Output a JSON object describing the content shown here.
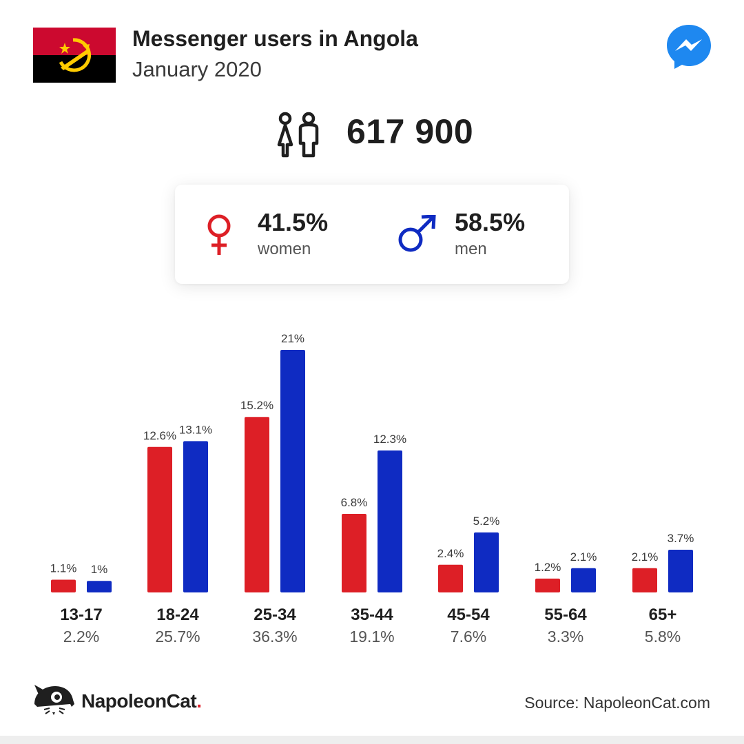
{
  "header": {
    "title": "Messenger users in Angola",
    "subtitle": "January 2020"
  },
  "icons": {
    "flag": "angola-flag",
    "platform": "messenger-icon",
    "people": "people-icon",
    "female": "female-icon",
    "male": "male-icon",
    "brand_logo": "napoleoncat-logo"
  },
  "total_users": "617 900",
  "gender": {
    "women": {
      "value": "41.5%",
      "label": "women"
    },
    "men": {
      "value": "58.5%",
      "label": "men"
    }
  },
  "colors": {
    "women": "#dd1f26",
    "men": "#0f2bc2",
    "flag_red": "#cc092f",
    "flag_black": "#000000",
    "flag_emblem": "#ffcb00",
    "messenger": "#1e88f0"
  },
  "chart_data": {
    "type": "bar",
    "categories": [
      "13-17",
      "18-24",
      "25-34",
      "35-44",
      "45-54",
      "55-64",
      "65+"
    ],
    "category_totals": [
      "2.2%",
      "25.7%",
      "36.3%",
      "19.1%",
      "7.6%",
      "3.3%",
      "5.8%"
    ],
    "series": [
      {
        "name": "women",
        "values": [
          1.1,
          12.6,
          15.2,
          6.8,
          2.4,
          1.2,
          2.1
        ],
        "labels": [
          "1.1%",
          "12.6%",
          "15.2%",
          "6.8%",
          "2.4%",
          "1.2%",
          "2.1%"
        ]
      },
      {
        "name": "men",
        "values": [
          1,
          13.1,
          21,
          12.3,
          5.2,
          2.1,
          3.7
        ],
        "labels": [
          "1%",
          "13.1%",
          "21%",
          "12.3%",
          "5.2%",
          "2.1%",
          "3.7%"
        ]
      }
    ],
    "ylim": [
      0,
      21
    ],
    "grid": false,
    "legend": "none"
  },
  "footer": {
    "brand_name": "NapoleonCat",
    "brand_dot": ".",
    "source": "Source: NapoleonCat.com"
  }
}
